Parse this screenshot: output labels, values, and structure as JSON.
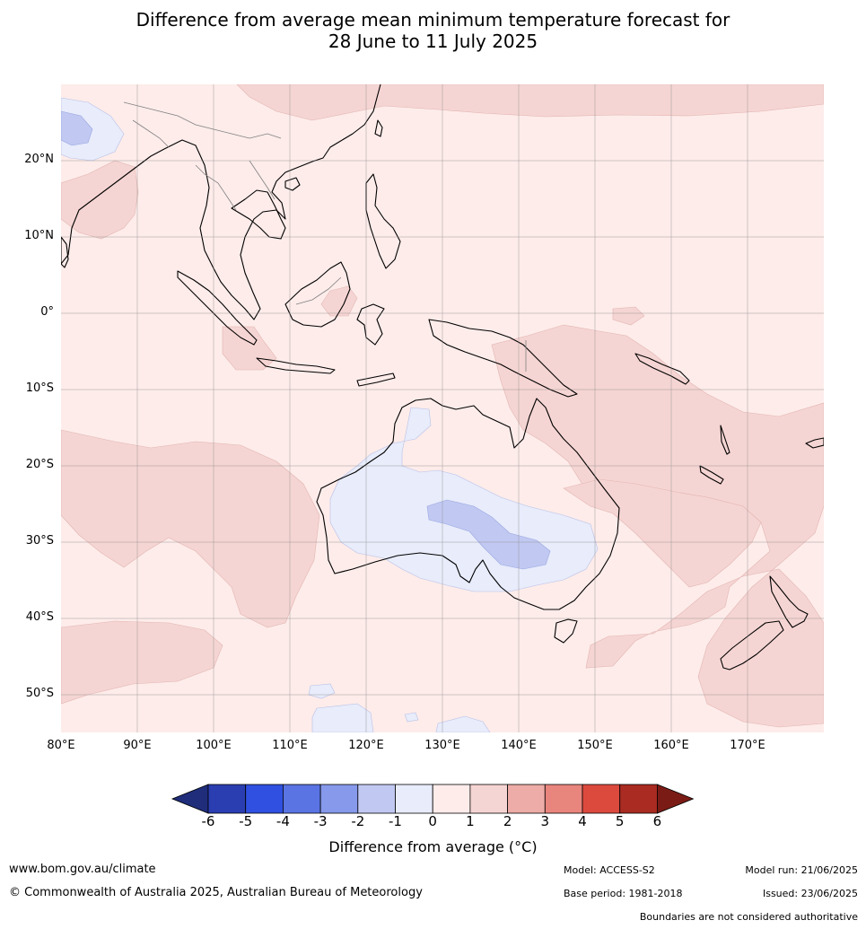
{
  "title": {
    "line1": "Difference from average mean minimum temperature forecast for",
    "line2": "28 June to 11 July 2025"
  },
  "map": {
    "lat_labels": [
      "20°N",
      "10°N",
      "0°",
      "10°S",
      "20°S",
      "30°S",
      "40°S",
      "50°S"
    ],
    "lon_labels": [
      "80°E",
      "90°E",
      "100°E",
      "110°E",
      "120°E",
      "130°E",
      "140°E",
      "150°E",
      "160°E",
      "170°E"
    ],
    "colors": {
      "below_minus1": "#c1c9f2",
      "minus1_to_0": "#e8ecfb",
      "zero_to_1": "#fdecea",
      "one_to_2": "#f5d5d3",
      "two_to_3": "#edaca7",
      "land_outline": "#000000",
      "border": "#808080",
      "grid": "#888888"
    }
  },
  "colorbar": {
    "ticks": [
      "-6",
      "-5",
      "-4",
      "-3",
      "-2",
      "-1",
      "0",
      "1",
      "2",
      "3",
      "4",
      "5",
      "6"
    ],
    "colors": [
      "#1f2d7a",
      "#2a3eb1",
      "#2f50e0",
      "#5a74e3",
      "#8699ea",
      "#c1c9f2",
      "#e8ecfb",
      "#fdecea",
      "#f5d5d3",
      "#edaca7",
      "#e8857d",
      "#dc4a3e",
      "#a92b21",
      "#7a1c15"
    ],
    "label": "Difference from average (°C)"
  },
  "footer": {
    "website": "www.bom.gov.au/climate",
    "copyright": "© Commonwealth of Australia 2025, Australian Bureau of Meteorology",
    "model": "Model: ACCESS-S2",
    "model_run": "Model run: 21/06/2025",
    "base_period": "Base period: 1981-2018",
    "issued": "Issued: 23/06/2025",
    "disclaimer": "Boundaries are not considered authoritative"
  }
}
